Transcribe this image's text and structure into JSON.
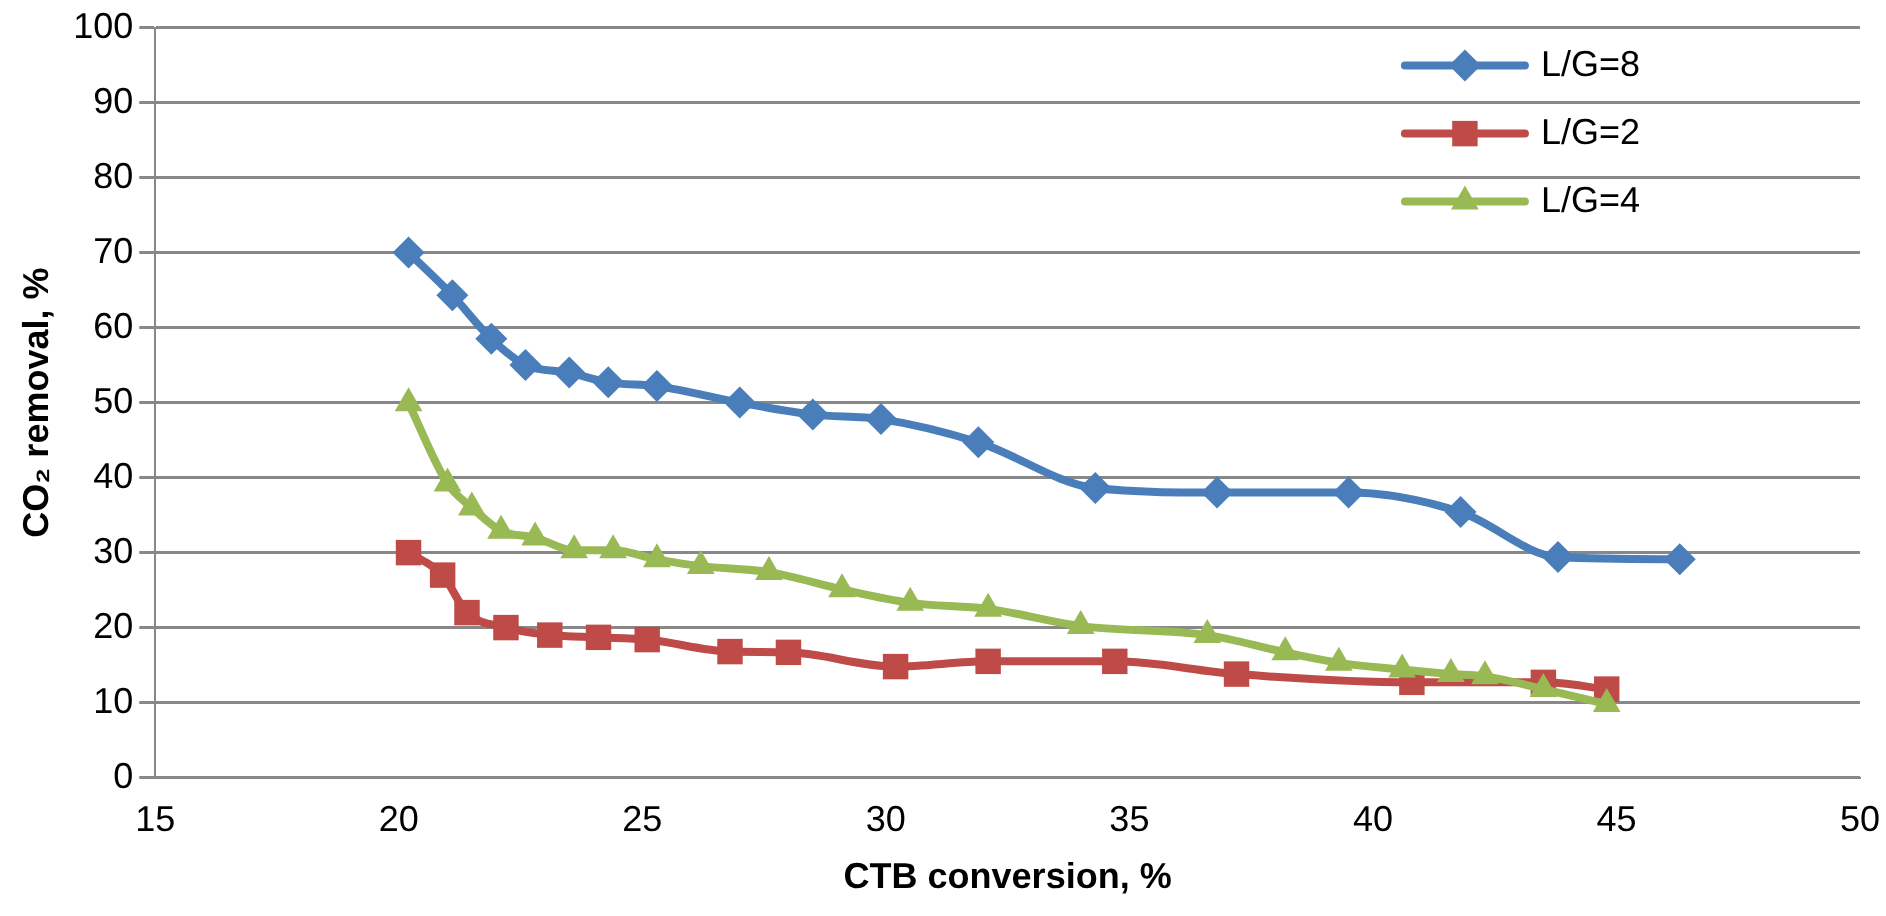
{
  "chart_data": {
    "type": "line",
    "xlabel": "CTB conversion, %",
    "ylabel": "CO₂ removal, %",
    "xlim": [
      15,
      50
    ],
    "xticks": [
      15,
      20,
      25,
      30,
      35,
      40,
      45,
      50
    ],
    "ylim": [
      0,
      100
    ],
    "yticks": [
      0,
      10,
      20,
      30,
      40,
      50,
      60,
      70,
      80,
      90,
      100
    ],
    "grid": "y",
    "legend": "top right",
    "series": [
      {
        "name": "L/G=8",
        "color": "#4a7ebb",
        "marker": "diamond",
        "x": [
          20.2,
          21.1,
          21.9,
          22.6,
          23.5,
          24.3,
          25.3,
          27,
          28.5,
          29.9,
          31.9,
          34.3,
          36.8,
          39.5,
          41.8,
          43.8,
          46.3
        ],
        "values": [
          70,
          64.3,
          58.5,
          55,
          54,
          52.7,
          52.2,
          50,
          48.4,
          47.8,
          44.7,
          38.6,
          38,
          38,
          35.4,
          29.4,
          29.1
        ]
      },
      {
        "name": "L/G=2",
        "color": "#be4b48",
        "marker": "square",
        "x": [
          20.2,
          20.9,
          21.4,
          22.2,
          23.1,
          24.1,
          25.1,
          26.8,
          28,
          30.2,
          32.1,
          34.7,
          37.2,
          40.8,
          43.5,
          44.8
        ],
        "values": [
          30,
          27,
          22,
          20,
          19,
          18.7,
          18.4,
          16.8,
          16.7,
          14.8,
          15.5,
          15.5,
          13.8,
          12.7,
          12.7,
          11.8
        ]
      },
      {
        "name": "L/G=4",
        "color": "#98b954",
        "marker": "triangle",
        "x": [
          20.2,
          21,
          21.5,
          22.1,
          22.8,
          23.6,
          24.4,
          25.3,
          26.2,
          27.6,
          29.1,
          30.5,
          32.1,
          34,
          36.6,
          38.2,
          39.3,
          40.6,
          41.6,
          42.3,
          43.5,
          44.8
        ],
        "values": [
          49.9,
          39.2,
          36,
          32.9,
          32,
          30.3,
          30.3,
          29.1,
          28.2,
          27.4,
          25.1,
          23.3,
          22.5,
          20.2,
          19,
          16.7,
          15.3,
          14.4,
          13.8,
          13.5,
          11.8,
          9.8
        ]
      }
    ]
  }
}
